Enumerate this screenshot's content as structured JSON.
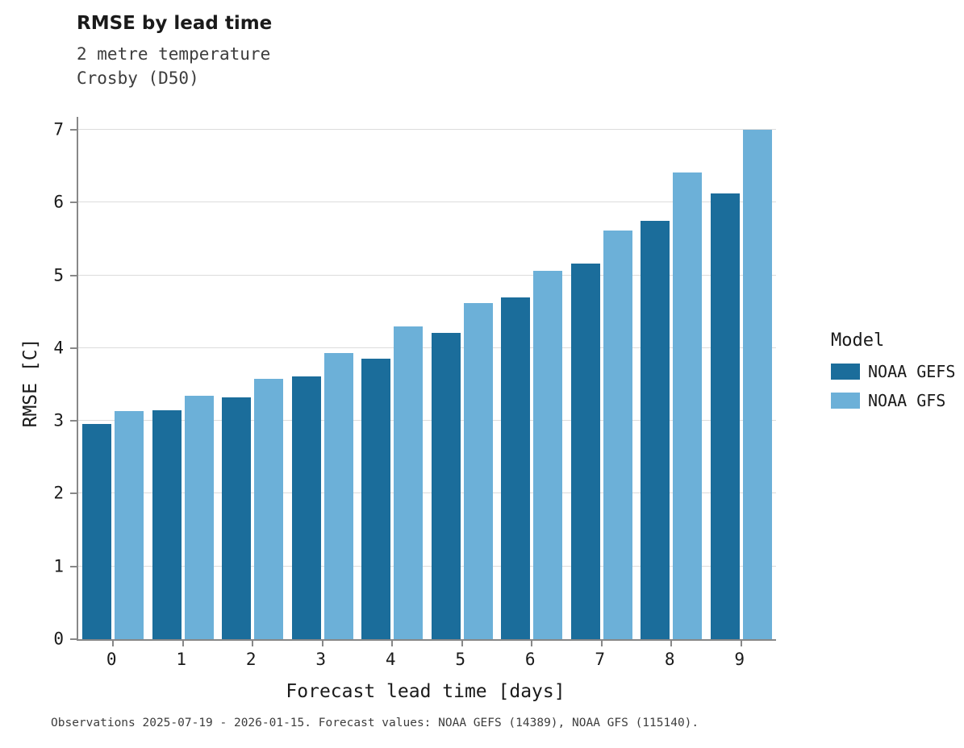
{
  "header": {
    "title": "RMSE by lead time",
    "subtitle_line1": "2 metre temperature",
    "subtitle_line2": "Crosby (D50)"
  },
  "axes": {
    "xlabel": "Forecast lead time [days]",
    "ylabel": "RMSE [C]"
  },
  "legend": {
    "title": "Model",
    "entries": [
      {
        "label": "NOAA GEFS",
        "color": "#1b6d9b"
      },
      {
        "label": "NOAA GFS",
        "color": "#6cb0d8"
      }
    ]
  },
  "footer": {
    "caption": "Observations 2025-07-19 - 2026-01-15. Forecast values: NOAA GEFS (14389), NOAA GFS (115140)."
  },
  "chart_data": {
    "type": "bar",
    "title": "RMSE by lead time",
    "subtitle": [
      "2 metre temperature",
      "Crosby (D50)"
    ],
    "xlabel": "Forecast lead time [days]",
    "ylabel": "RMSE [C]",
    "categories": [
      "0",
      "1",
      "2",
      "3",
      "4",
      "5",
      "6",
      "7",
      "8",
      "9"
    ],
    "series": [
      {
        "name": "NOAA GEFS",
        "color": "#1b6d9b",
        "values": [
          2.96,
          3.15,
          3.32,
          3.61,
          3.86,
          4.21,
          4.7,
          5.16,
          5.75,
          6.13
        ]
      },
      {
        "name": "NOAA GFS",
        "color": "#6cb0d8",
        "values": [
          3.14,
          3.34,
          3.58,
          3.93,
          4.3,
          4.62,
          5.06,
          5.62,
          6.41,
          7.0
        ]
      }
    ],
    "ylim": [
      0,
      7
    ],
    "yticks": [
      0,
      1,
      2,
      3,
      4,
      5,
      6,
      7
    ],
    "grid": true,
    "legend_position": "right"
  }
}
